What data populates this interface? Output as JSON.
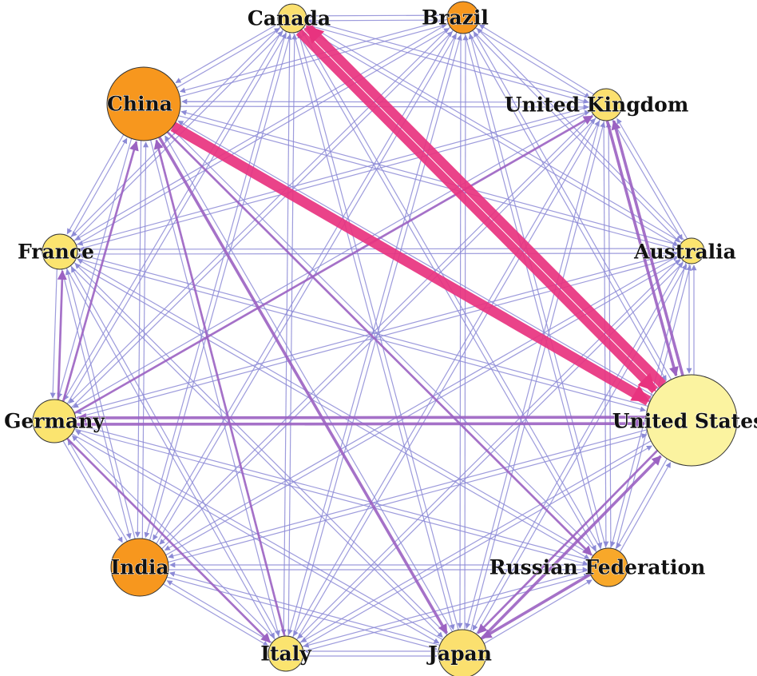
{
  "colors": {
    "background": "#ffffff",
    "edge_light": "#8c8ad6",
    "edge_medium": "#9b62c2",
    "edge_heavy": "#e8337f",
    "node_outline": "#333333",
    "node_orange": "#f7971e",
    "node_light_orange": "#fbc14a",
    "node_yellow": "#fbeb7f",
    "node_pale_yellow": "#fbf3a0"
  },
  "nodes": [
    {
      "id": "canada",
      "label": "Canada",
      "color": "#fbe06f"
    },
    {
      "id": "brazil",
      "label": "Brazil",
      "color": "#f7971e"
    },
    {
      "id": "uk",
      "label": "United Kingdom",
      "color": "#fbe06f"
    },
    {
      "id": "australia",
      "label": "Australia",
      "color": "#fbe46f"
    },
    {
      "id": "us",
      "label": "United States",
      "color": "#fbf3a0"
    },
    {
      "id": "russia",
      "label": "Russian Federation",
      "color": "#f8a82a"
    },
    {
      "id": "japan",
      "label": "Japan",
      "color": "#fbe06f"
    },
    {
      "id": "italy",
      "label": "Italy",
      "color": "#fbe46f"
    },
    {
      "id": "india",
      "label": "India",
      "color": "#f7971e"
    },
    {
      "id": "germany",
      "label": "Germany",
      "color": "#fbe46f"
    },
    {
      "id": "france",
      "label": "France",
      "color": "#fbe46f"
    },
    {
      "id": "china",
      "label": "China",
      "color": "#f7971e"
    }
  ],
  "edges_heavy": [
    {
      "from": "china",
      "to": "us",
      "weight": 5
    },
    {
      "from": "us",
      "to": "canada",
      "weight": 4.5
    },
    {
      "from": "canada",
      "to": "us",
      "weight": 4
    }
  ],
  "edges_medium": [
    {
      "from": "us",
      "to": "germany",
      "weight": 2
    },
    {
      "from": "germany",
      "to": "us",
      "weight": 2
    },
    {
      "from": "russia",
      "to": "japan",
      "weight": 2
    },
    {
      "from": "japan",
      "to": "us",
      "weight": 2
    },
    {
      "from": "us",
      "to": "uk",
      "weight": 2
    },
    {
      "from": "uk",
      "to": "us",
      "weight": 2
    },
    {
      "from": "china",
      "to": "japan",
      "weight": 2
    },
    {
      "from": "italy",
      "to": "china",
      "weight": 1.5
    },
    {
      "from": "germany",
      "to": "france",
      "weight": 1.5
    },
    {
      "from": "germany",
      "to": "china",
      "weight": 1.5
    },
    {
      "from": "germany",
      "to": "uk",
      "weight": 1.5
    },
    {
      "from": "us",
      "to": "japan",
      "weight": 1.5
    },
    {
      "from": "germany",
      "to": "italy",
      "weight": 1.5
    },
    {
      "from": "china",
      "to": "russia",
      "weight": 1.5
    }
  ]
}
